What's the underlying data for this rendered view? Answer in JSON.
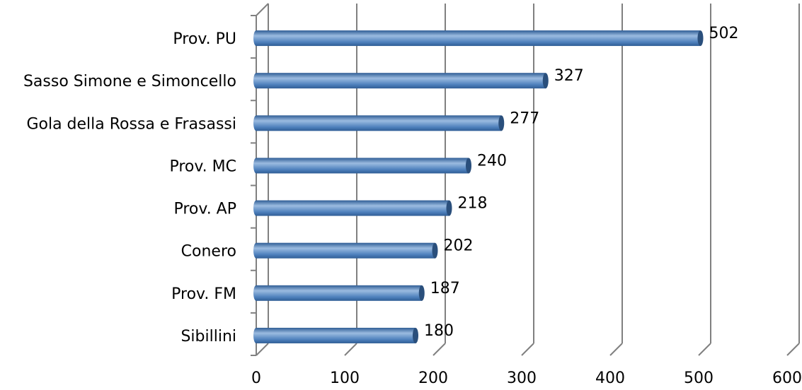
{
  "chart_data": {
    "type": "bar",
    "orientation": "horizontal",
    "style": "3d-cylinder",
    "categories": [
      "Prov. PU",
      "Sasso Simone e Simoncello",
      "Gola della Rossa e Frasassi",
      "Prov. MC",
      "Prov. AP",
      "Conero",
      "Prov. FM",
      "Sibillini"
    ],
    "values": [
      502,
      327,
      277,
      240,
      218,
      202,
      187,
      180
    ],
    "data_labels": [
      "502",
      "327",
      "277",
      "240",
      "218",
      "202",
      "187",
      "180"
    ],
    "xlim": [
      0,
      600
    ],
    "x_ticks": [
      0,
      100,
      200,
      300,
      400,
      500,
      600
    ],
    "x_tick_labels": [
      "0",
      "100",
      "200",
      "300",
      "400",
      "500",
      "600"
    ],
    "title": "",
    "xlabel": "",
    "ylabel": "",
    "grid": "vertical",
    "legend": "none",
    "colors": {
      "bar": "#4f81bd",
      "bar_light": "#9bbbe0",
      "bar_dark": "#2f5d95",
      "bar_end": "#2a4f7c",
      "grid": "#808080",
      "text": "#000000"
    }
  }
}
